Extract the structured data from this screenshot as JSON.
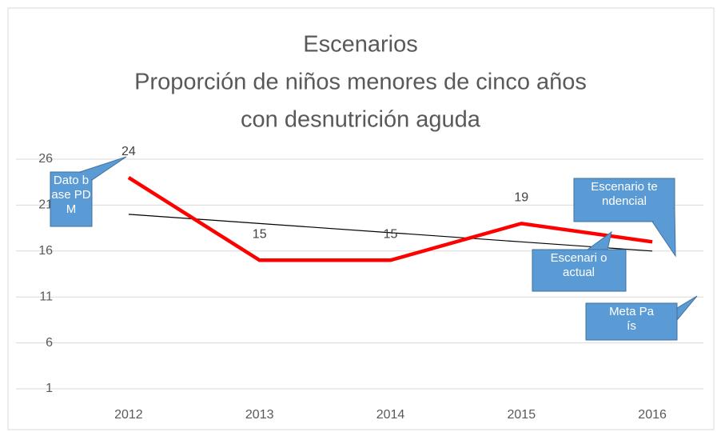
{
  "chart_data": {
    "type": "line",
    "title": [
      "Escenarios",
      "Proporción de niños menores de cinco años",
      "con desnutrición aguda"
    ],
    "categories": [
      "2012",
      "2013",
      "2014",
      "2015",
      "2016"
    ],
    "series": [
      {
        "color": "#ff0000",
        "values": [
          24,
          15,
          15,
          19,
          17
        ],
        "value_labels": [
          "24",
          "15",
          "15",
          "19",
          null
        ]
      },
      {
        "color": "#000000",
        "values": [
          20,
          19,
          18,
          17,
          16
        ]
      }
    ],
    "ylim": [
      1,
      26
    ],
    "yticks": [
      1,
      6,
      11,
      16,
      21,
      26
    ],
    "grid": true,
    "annotations": [
      {
        "text": "Dato base PDM"
      },
      {
        "text": "Escenario tendencial"
      },
      {
        "text": "Escenari o actual"
      },
      {
        "text": "Meta País"
      }
    ]
  }
}
